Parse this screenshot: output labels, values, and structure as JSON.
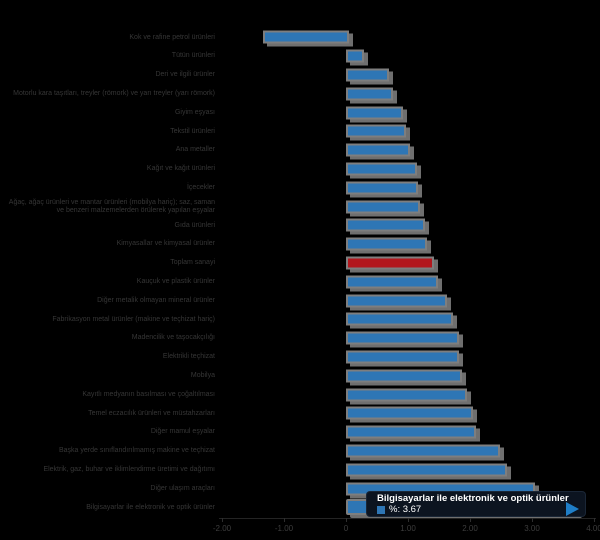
{
  "tooltip": {
    "title": "Bilgisayarlar ile elektronik ve optik ürünler",
    "value": "%: 3.67"
  },
  "colors": {
    "bar_default": "#2e76b5",
    "bar_highlight": "#b2171d",
    "bar_border": "#7e7e7e",
    "bar_shadow": "#6f6f6f",
    "tooltip_bg": "#0c1420",
    "tooltip_text": "#ffffff",
    "arrow_blue": "#1f7ec7",
    "label_text": "#363636",
    "tick_text": "#3d3d3d"
  },
  "chart_data": {
    "type": "bar",
    "orientation": "horizontal",
    "title": "",
    "xlabel": "",
    "ylabel": "",
    "xlim": [
      -2,
      4
    ],
    "grid": false,
    "unit": "%",
    "categories": [
      "Kok ve rafine petrol ürünleri",
      "Tütün ürünleri",
      "Deri ve ilgili ürünler",
      "Motorlu kara taşıtları, treyler (römork) ve yarı treyler (yarı römork)",
      "Giyim eşyası",
      "Tekstil ürünleri",
      "Ana metaller",
      "Kağıt ve kağıt ürünleri",
      "İçecekler",
      "Ağaç, ağaç ürünleri ve mantar ürünleri (mobilya hariç); saz, saman ve benzeri malzemelerden örülerek yapılan eşyalar",
      "Gıda ürünleri",
      "Kimyasallar ve kimyasal ürünler",
      "Toplam sanayi",
      "Kauçuk ve plastik ürünler",
      "Diğer metalik olmayan mineral ürünler",
      "Fabrikasyon metal ürünler (makine ve teçhizat hariç)",
      "Madencilik ve taşocakçılığı",
      "Elektrikli teçhizat",
      "Mobilya",
      "Kayıtlı medyanın basılması ve çoğaltılması",
      "Temel eczacılık ürünleri ve müstahzarları",
      "Diğer mamul eşyalar",
      "Başka yerde sınıflandırılmamış makine ve teçhizat",
      "Elektrik, gaz, buhar ve iklimlendirme üretimi ve dağıtımı",
      "Diğer ulaşım araçları",
      "Bilgisayarlar ile elektronik ve optik ürünler"
    ],
    "values": [
      -1.32,
      0.23,
      0.63,
      0.69,
      0.85,
      0.9,
      0.97,
      1.08,
      1.1,
      1.13,
      1.21,
      1.24,
      1.35,
      1.42,
      1.56,
      1.66,
      1.76,
      1.76,
      1.81,
      1.89,
      1.98,
      2.03,
      2.42,
      2.53,
      2.98,
      3.67
    ],
    "highlight_index": 12,
    "hovered_index": 25,
    "x_ticks": [
      {
        "value": -2,
        "label": "-2.00"
      },
      {
        "value": -1,
        "label": "-1.00"
      },
      {
        "value": 0,
        "label": "0"
      },
      {
        "value": 1,
        "label": "1.00"
      },
      {
        "value": 2,
        "label": "2.00"
      },
      {
        "value": 3,
        "label": "3.00"
      },
      {
        "value": 4,
        "label": "4.00"
      }
    ]
  }
}
